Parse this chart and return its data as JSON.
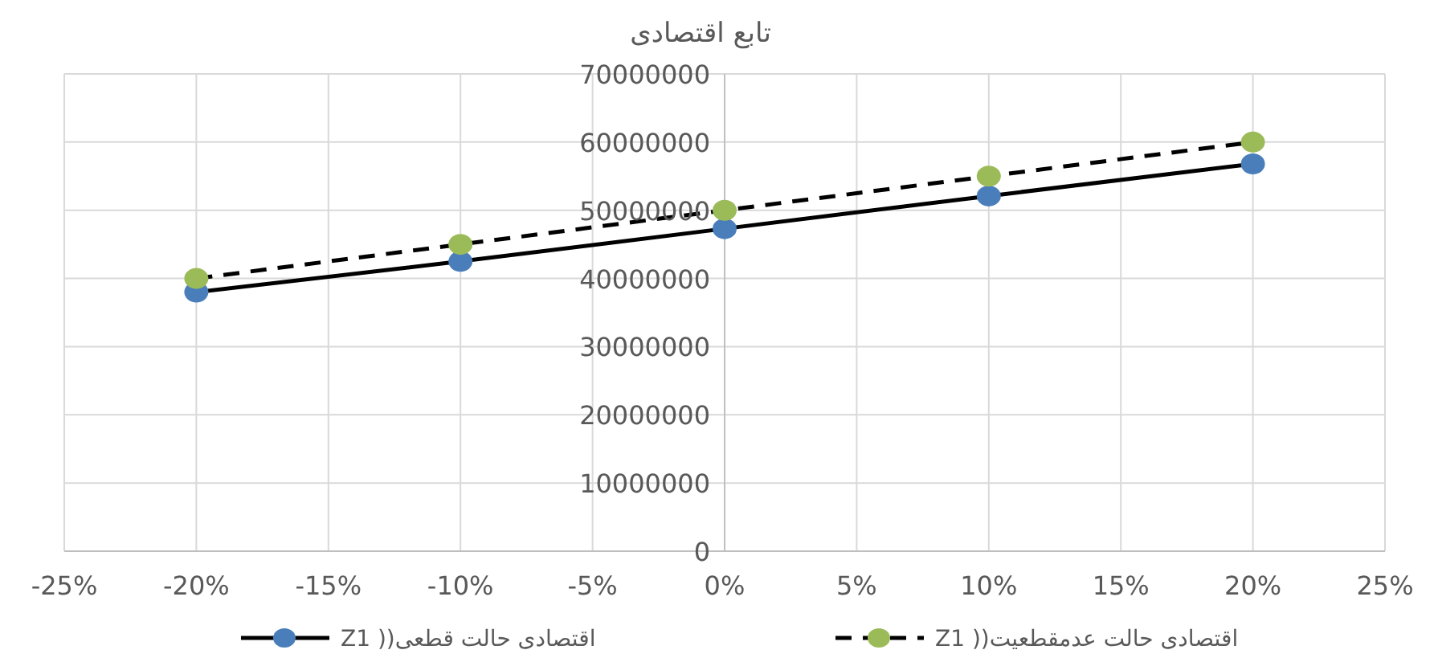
{
  "chart_data": {
    "type": "line",
    "title": "تابع اقتصادی",
    "x": [
      -20,
      -10,
      0,
      10,
      20
    ],
    "series": [
      {
        "name": "اقتصادی  حالت قطعی(( Z1",
        "color": "#4a7ebb",
        "line_style": "solid",
        "values": [
          38000000,
          42500000,
          47300000,
          52100000,
          56800000
        ]
      },
      {
        "name": "اقتصادی حالت عدمقطعیت(( Z1",
        "color": "#9bbb59",
        "line_style": "dashed",
        "values": [
          40000000,
          45000000,
          50000000,
          55000000,
          60000000
        ]
      }
    ],
    "xlim": [
      -25,
      25
    ],
    "xticks": [
      {
        "value": -25,
        "label": "-25%"
      },
      {
        "value": -20,
        "label": "-20%"
      },
      {
        "value": -15,
        "label": "-15%"
      },
      {
        "value": -10,
        "label": "-10%"
      },
      {
        "value": -5,
        "label": "-5%"
      },
      {
        "value": 0,
        "label": "0%"
      },
      {
        "value": 5,
        "label": "5%"
      },
      {
        "value": 10,
        "label": "10%"
      },
      {
        "value": 15,
        "label": "15%"
      },
      {
        "value": 20,
        "label": "20%"
      },
      {
        "value": 25,
        "label": "25%"
      }
    ],
    "ylim": [
      0,
      70000000
    ],
    "yticks": [
      0,
      10000000,
      20000000,
      30000000,
      40000000,
      50000000,
      60000000,
      70000000
    ],
    "grid": true,
    "legend": "bottom",
    "marker": "circle"
  }
}
